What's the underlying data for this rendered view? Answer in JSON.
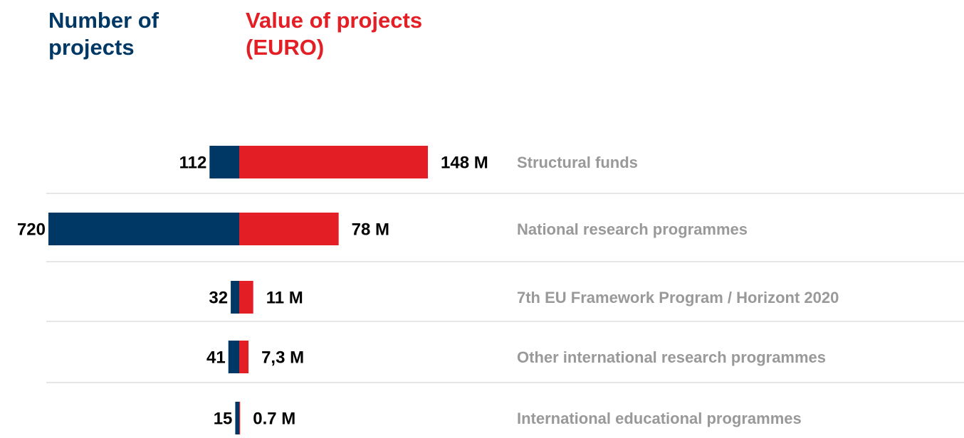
{
  "chart_data": {
    "type": "butterfly",
    "categories": [
      "Structural funds",
      "National research programmes",
      "7th EU Framework Program / Horizont 2020",
      "Other international research programmes",
      "International educational programmes"
    ],
    "series": [
      {
        "name": "Number of projects",
        "color": "#003865",
        "values": [
          112,
          720,
          32,
          41,
          15
        ]
      },
      {
        "name": "Value of projects (EURO)",
        "color": "#e31e24",
        "values": [
          148,
          78,
          11,
          7.3,
          0.7
        ],
        "value_labels": [
          "148 M",
          "78 M",
          "11 M",
          "7,3 M",
          "0.7 M"
        ]
      }
    ]
  }
}
